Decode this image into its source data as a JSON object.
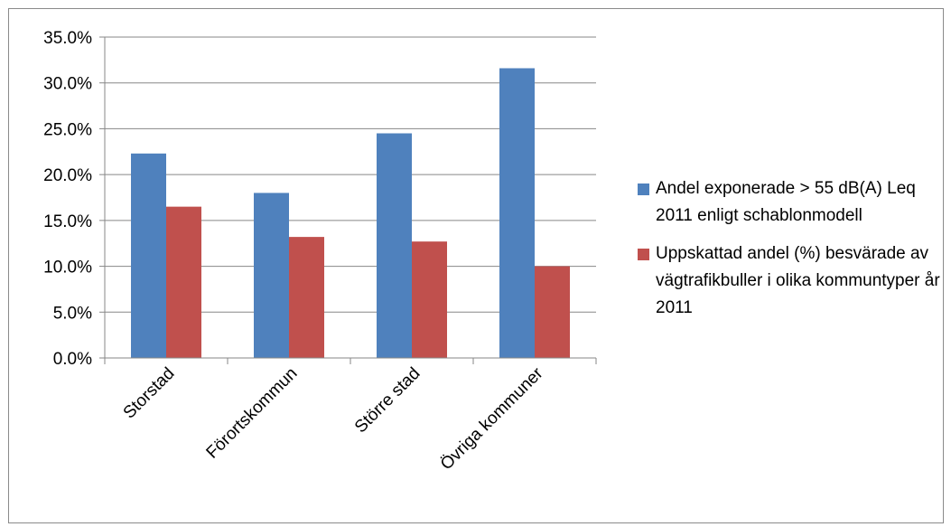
{
  "chart_data": {
    "type": "bar",
    "title": "",
    "xlabel": "",
    "ylabel": "",
    "categories": [
      "Storstad",
      "Förortskommun",
      "Större stad",
      "Övriga kommuner"
    ],
    "series": [
      {
        "name": "Andel exponerade > 55 dB(A) Leq 2011 enligt schablonmodell",
        "color": "#4f81bd",
        "values": [
          0.223,
          0.18,
          0.245,
          0.316
        ]
      },
      {
        "name": "Uppskattad andel (%) besvärade av vägtrafikbuller i olika kommuntyper år 2011",
        "color": "#c0504d",
        "values": [
          0.165,
          0.132,
          0.127,
          0.1
        ]
      }
    ],
    "ylim": [
      0,
      0.35
    ],
    "yticks": [
      0,
      0.05,
      0.1,
      0.15,
      0.2,
      0.25,
      0.3,
      0.35
    ],
    "ytick_labels": [
      "0.0%",
      "5.0%",
      "10.0%",
      "15.0%",
      "20.0%",
      "25.0%",
      "30.0%",
      "35.0%"
    ],
    "grid": true,
    "legend_position": "right"
  },
  "legend": {
    "items": [
      {
        "label": "Andel exponerade > 55 dB(A) Leq 2011 enligt schablonmodell",
        "color": "#4f81bd"
      },
      {
        "label": "Uppskattad andel (%) besvärade av vägtrafikbuller i olika kommuntyper år 2011",
        "color": "#c0504d"
      }
    ]
  }
}
